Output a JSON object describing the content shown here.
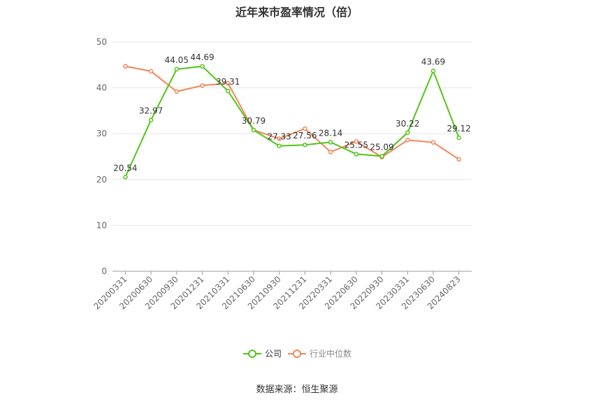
{
  "chart_data": {
    "type": "line",
    "title": "近年来市盈率情况（倍）",
    "xlabel": "",
    "ylabel": "",
    "ylim": [
      0,
      50
    ],
    "yticks": [
      0,
      10,
      20,
      30,
      40,
      50
    ],
    "grid": true,
    "legend_position": "bottom",
    "categories": [
      "20200331",
      "20200630",
      "20200930",
      "20201231",
      "20210331",
      "20210630",
      "20210930",
      "20211231",
      "20220331",
      "20220630",
      "20220930",
      "20230331",
      "20230630",
      "20240823"
    ],
    "series": [
      {
        "name": "公司",
        "color": "#52c41a",
        "values": [
          20.54,
          32.97,
          44.05,
          44.69,
          39.31,
          30.79,
          27.33,
          27.56,
          28.14,
          25.55,
          25.09,
          30.22,
          43.69,
          29.12
        ],
        "labels": [
          "20.54",
          "32.97",
          "44.05",
          "44.69",
          "39.31",
          "30.79",
          "27.33",
          "27.56",
          "28.14",
          "25.55",
          "25.09",
          "30.22",
          "43.69",
          "29.12"
        ]
      },
      {
        "name": "行业中位数",
        "color": "#f0875a",
        "values": [
          44.7,
          43.6,
          39.2,
          40.5,
          41.0,
          30.8,
          28.9,
          31.1,
          26.0,
          28.3,
          24.9,
          28.6,
          28.1,
          24.4
        ]
      }
    ]
  },
  "source": "数据来源：恒生聚源"
}
